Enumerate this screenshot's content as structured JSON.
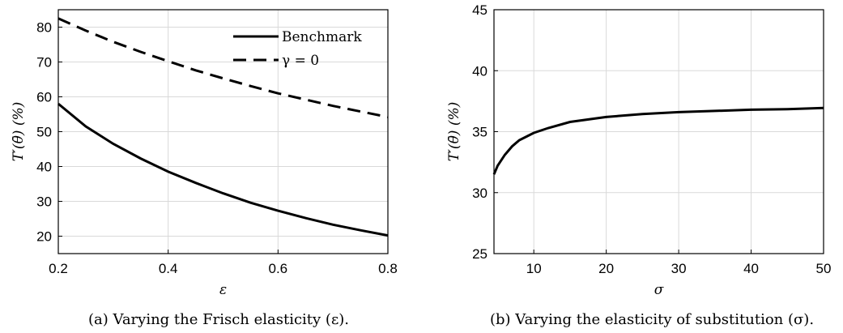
{
  "chart_data": [
    {
      "type": "line",
      "title": "",
      "xlabel": "ε",
      "ylabel": "T′(θ̄) (%)",
      "xlim": [
        0.2,
        0.8
      ],
      "ylim": [
        15,
        85
      ],
      "xticks": [
        "0.2",
        "0.4",
        "0.6",
        "0.8"
      ],
      "yticks": [
        "20",
        "30",
        "40",
        "50",
        "60",
        "70",
        "80"
      ],
      "grid": true,
      "legend_position": "top-right",
      "caption": "(a) Varying the Frisch elasticity (ε).",
      "series": [
        {
          "name": "Benchmark",
          "style": "solid",
          "x": [
            0.2,
            0.25,
            0.3,
            0.35,
            0.4,
            0.45,
            0.5,
            0.55,
            0.6,
            0.65,
            0.7,
            0.75,
            0.8
          ],
          "y": [
            58.0,
            51.5,
            46.5,
            42.3,
            38.5,
            35.3,
            32.3,
            29.6,
            27.3,
            25.2,
            23.3,
            21.7,
            20.2
          ]
        },
        {
          "name": "γ = 0",
          "style": "dashed",
          "x": [
            0.2,
            0.25,
            0.3,
            0.35,
            0.4,
            0.45,
            0.5,
            0.55,
            0.6,
            0.65,
            0.7,
            0.75,
            0.8
          ],
          "y": [
            82.5,
            79.0,
            75.8,
            72.9,
            70.2,
            67.6,
            65.3,
            63.1,
            61.0,
            59.2,
            57.4,
            55.8,
            54.2
          ]
        }
      ]
    },
    {
      "type": "line",
      "title": "",
      "xlabel": "σ",
      "ylabel": "T′(θ̄) (%)",
      "xlim": [
        4.5,
        50
      ],
      "ylim": [
        25,
        45
      ],
      "xticks": [
        "10",
        "20",
        "30",
        "40",
        "50"
      ],
      "yticks": [
        "25",
        "30",
        "35",
        "40",
        "45"
      ],
      "grid": true,
      "caption": "(b) Varying the elasticity of substitution (σ).",
      "series": [
        {
          "style": "solid",
          "x": [
            4.5,
            5,
            6,
            7,
            8,
            9,
            10,
            12,
            15,
            20,
            25,
            30,
            35,
            40,
            45,
            50
          ],
          "y": [
            31.5,
            32.2,
            33.1,
            33.8,
            34.3,
            34.6,
            34.9,
            35.3,
            35.8,
            36.2,
            36.45,
            36.6,
            36.7,
            36.8,
            36.85,
            36.95
          ]
        }
      ]
    }
  ]
}
